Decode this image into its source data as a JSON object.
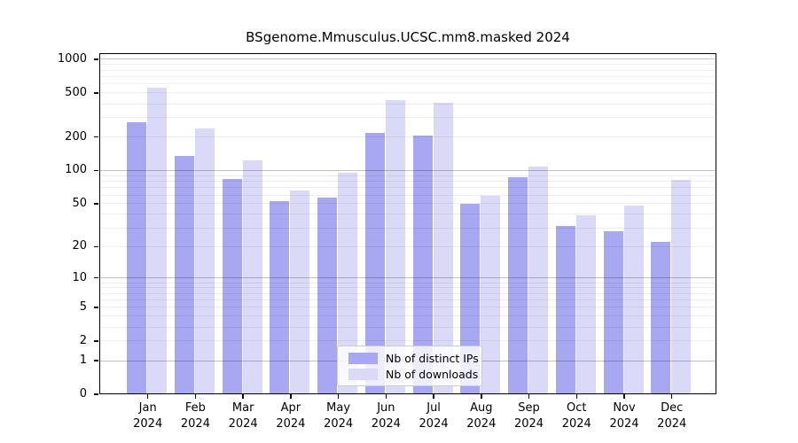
{
  "chart_data": {
    "type": "bar",
    "title": "BSgenome.Mmusculus.UCSC.mm8.masked 2024",
    "categories": [
      "Jan",
      "Feb",
      "Mar",
      "Apr",
      "May",
      "Jun",
      "Jul",
      "Aug",
      "Sep",
      "Oct",
      "Nov",
      "Dec"
    ],
    "x_tick_year": "2024",
    "series": [
      {
        "name": "Nb of distinct IPs",
        "color": "#a7a7f2",
        "values": [
          270,
          135,
          84,
          53,
          57,
          218,
          208,
          50,
          87,
          31,
          28,
          22
        ]
      },
      {
        "name": "Nb of downloads",
        "color": "#dadaf8",
        "values": [
          555,
          238,
          123,
          66,
          95,
          428,
          405,
          59,
          109,
          39,
          48,
          83
        ]
      }
    ],
    "xlabel": "",
    "ylabel": "",
    "ylim": [
      0,
      1000
    ],
    "y_scale": "log10(value+1)",
    "y_tick_values": [
      1000,
      500,
      200,
      100,
      50,
      20,
      10,
      5,
      2,
      1,
      0
    ],
    "y_tick_labels": [
      "1000",
      "500",
      "200",
      "100",
      "50",
      "20",
      "10",
      "5",
      "2",
      "1",
      "0"
    ],
    "major_gridline_values": [
      1,
      10,
      100,
      1000
    ],
    "minor_gridline_values": [
      2,
      3,
      4,
      5,
      6,
      7,
      8,
      9,
      20,
      30,
      40,
      50,
      60,
      70,
      80,
      90,
      200,
      300,
      400,
      500,
      600,
      700,
      800,
      900
    ],
    "grid": "on",
    "legend_position": "inside-bottom-center"
  },
  "colors": {
    "bar_dark": "#a7a7f2",
    "bar_light": "#dadaf8",
    "axis": "#000000",
    "legend_border": "#cccccc",
    "background": "#ffffff"
  }
}
